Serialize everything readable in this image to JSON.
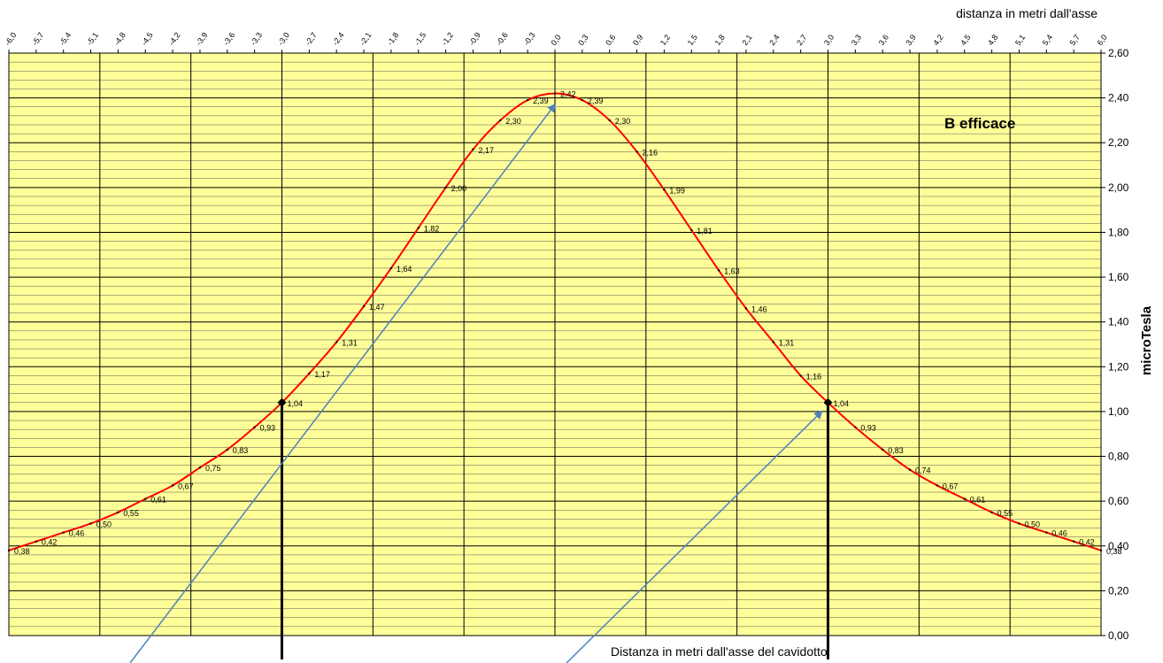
{
  "chart_data": {
    "type": "line",
    "title": "B efficace",
    "xlabel_top": "distanza in metri dall'asse",
    "xlabel_bottom": "Distanza in metri dall'asse del cavidotto",
    "ylabel": "microTesla",
    "xlim": [
      -6.0,
      6.0
    ],
    "ylim": [
      0.0,
      2.6
    ],
    "x_tick_labels": [
      "-6,0",
      "-5,7",
      "-5,4",
      "-5,1",
      "-4,8",
      "-4,5",
      "-4,2",
      "-3,9",
      "-3,6",
      "-3,3",
      "-3,0",
      "-2,7",
      "-2,4",
      "-2,1",
      "-1,8",
      "-1,5",
      "-1,2",
      "-0,9",
      "-0,6",
      "-0,3",
      "0,0",
      "0,3",
      "0,6",
      "0,9",
      "1,2",
      "1,5",
      "1,8",
      "2,1",
      "2,4",
      "2,7",
      "3,0",
      "3,3",
      "3,6",
      "3,9",
      "4,2",
      "4,5",
      "4,8",
      "5,1",
      "5,4",
      "5,7",
      "6,0"
    ],
    "y_tick_labels": [
      "0,00",
      "0,20",
      "0,40",
      "0,60",
      "0,80",
      "1,00",
      "1,20",
      "1,40",
      "1,60",
      "1,80",
      "2,00",
      "2,20",
      "2,40",
      "2,60"
    ],
    "grid": true,
    "series": [
      {
        "color": "#ff0000",
        "x": [
          -6.0,
          -5.7,
          -5.4,
          -5.1,
          -4.8,
          -4.5,
          -4.2,
          -3.9,
          -3.6,
          -3.3,
          -3.0,
          -2.7,
          -2.4,
          -2.1,
          -1.8,
          -1.5,
          -1.2,
          -0.9,
          -0.6,
          -0.3,
          0.0,
          0.3,
          0.6,
          0.9,
          1.2,
          1.5,
          1.8,
          2.1,
          2.4,
          2.7,
          3.0,
          3.3,
          3.6,
          3.9,
          4.2,
          4.5,
          4.8,
          5.1,
          5.4,
          5.7,
          6.0
        ],
        "y": [
          0.38,
          0.42,
          0.46,
          0.5,
          0.55,
          0.61,
          0.67,
          0.75,
          0.83,
          0.93,
          1.04,
          1.17,
          1.31,
          1.47,
          1.64,
          1.82,
          2.0,
          2.17,
          2.3,
          2.39,
          2.42,
          2.39,
          2.3,
          2.16,
          1.99,
          1.81,
          1.63,
          1.46,
          1.31,
          1.16,
          1.04,
          0.93,
          0.83,
          0.74,
          0.67,
          0.61,
          0.55,
          0.5,
          0.46,
          0.42,
          0.38
        ],
        "labels": [
          "0,38",
          "0,42",
          "0,46",
          "0,50",
          "0,55",
          "0,61",
          "0,67",
          "0,75",
          "0,83",
          "0,93",
          "1,04",
          "1,17",
          "1,31",
          "1,47",
          "1,64",
          "1,82",
          "2,00",
          "2,17",
          "2,30",
          "2,39",
          "2,42",
          "2,39",
          "2,30",
          "2,16",
          "1,99",
          "1,81",
          "1,63",
          "1,46",
          "1,31",
          "1,16",
          "1,04",
          "0,93",
          "0,83",
          "0,74",
          "0,67",
          "0,61",
          "0,55",
          "0,50",
          "0,46",
          "0,42",
          "0,38"
        ]
      }
    ],
    "markers": [
      {
        "x": -3.0,
        "y": 1.04
      },
      {
        "x": 3.0,
        "y": 1.04
      }
    ],
    "plot_background": "#ffff99",
    "grid_color": "#000000"
  }
}
